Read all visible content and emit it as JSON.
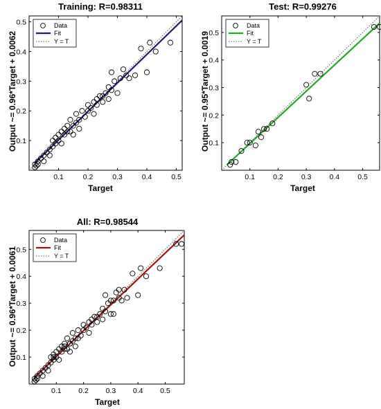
{
  "chart_data": [
    {
      "type": "scatter",
      "title": "Training: R=0.98311",
      "xlabel": "Target",
      "ylabel": "Output ~= 0.96*Target + 0.0062",
      "xlim": [
        0.0,
        0.52
      ],
      "ylim": [
        0.0,
        0.52
      ],
      "xticks": [
        "0.1",
        "0.2",
        "0.3",
        "0.4",
        "0.5"
      ],
      "yticks": [
        "0.1",
        "0.2",
        "0.3",
        "0.4",
        "0.5"
      ],
      "fit": {
        "slope": 0.96,
        "intercept": 0.0062,
        "color": "#1a1a6e"
      },
      "legend": {
        "position": "top-left",
        "entries": [
          "Data",
          "Fit",
          "Y = T"
        ]
      },
      "series": [
        {
          "name": "Data",
          "x": [
            0.02,
            0.02,
            0.025,
            0.03,
            0.03,
            0.04,
            0.05,
            0.05,
            0.06,
            0.07,
            0.07,
            0.08,
            0.08,
            0.09,
            0.09,
            0.1,
            0.1,
            0.11,
            0.11,
            0.12,
            0.12,
            0.13,
            0.13,
            0.14,
            0.14,
            0.15,
            0.15,
            0.16,
            0.16,
            0.17,
            0.17,
            0.18,
            0.19,
            0.2,
            0.2,
            0.21,
            0.22,
            0.22,
            0.23,
            0.23,
            0.24,
            0.25,
            0.25,
            0.26,
            0.27,
            0.27,
            0.28,
            0.28,
            0.29,
            0.3,
            0.31,
            0.32,
            0.33,
            0.34,
            0.36,
            0.38,
            0.4,
            0.41,
            0.43,
            0.48
          ],
          "y": [
            0.01,
            0.02,
            0.015,
            0.03,
            0.02,
            0.04,
            0.05,
            0.03,
            0.06,
            0.07,
            0.05,
            0.08,
            0.1,
            0.09,
            0.11,
            0.1,
            0.12,
            0.13,
            0.09,
            0.14,
            0.12,
            0.15,
            0.13,
            0.13,
            0.17,
            0.15,
            0.12,
            0.16,
            0.19,
            0.17,
            0.14,
            0.2,
            0.18,
            0.2,
            0.22,
            0.21,
            0.23,
            0.19,
            0.24,
            0.22,
            0.25,
            0.25,
            0.23,
            0.26,
            0.28,
            0.24,
            0.27,
            0.33,
            0.3,
            0.26,
            0.31,
            0.34,
            0.32,
            0.31,
            0.32,
            0.41,
            0.33,
            0.43,
            0.4,
            0.43
          ]
        }
      ]
    },
    {
      "type": "scatter",
      "title": "Test: R=0.99276",
      "xlabel": "Target",
      "ylabel": "Output ~= 0.95*Target + 0.0019",
      "xlim": [
        0.0,
        0.56
      ],
      "ylim": [
        0.0,
        0.56
      ],
      "xticks": [
        "0.1",
        "0.2",
        "0.3",
        "0.4",
        "0.5"
      ],
      "yticks": [
        "0.1",
        "0.2",
        "0.3",
        "0.4",
        "0.5"
      ],
      "fit": {
        "slope": 0.95,
        "intercept": 0.0019,
        "color": "#1faa1f"
      },
      "legend": {
        "position": "top-left",
        "entries": [
          "Data",
          "Fit",
          "Y = T"
        ]
      },
      "series": [
        {
          "name": "Data",
          "x": [
            0.03,
            0.035,
            0.05,
            0.07,
            0.09,
            0.1,
            0.12,
            0.13,
            0.14,
            0.15,
            0.16,
            0.18,
            0.3,
            0.31,
            0.33,
            0.35,
            0.54,
            0.56
          ],
          "y": [
            0.02,
            0.03,
            0.03,
            0.07,
            0.1,
            0.1,
            0.09,
            0.14,
            0.12,
            0.15,
            0.15,
            0.17,
            0.31,
            0.26,
            0.35,
            0.35,
            0.52,
            0.52
          ]
        }
      ]
    },
    {
      "type": "scatter",
      "title": "All: R=0.98544",
      "xlabel": "Target",
      "ylabel": "Output ~= 0.96*Target + 0.0061",
      "xlim": [
        0.0,
        0.57
      ],
      "ylim": [
        0.0,
        0.57
      ],
      "xticks": [
        "0.1",
        "0.2",
        "0.3",
        "0.4",
        "0.5"
      ],
      "yticks": [
        "0.1",
        "0.2",
        "0.3",
        "0.4",
        "0.5"
      ],
      "fit": {
        "slope": 0.96,
        "intercept": 0.0061,
        "color": "#a01010"
      },
      "legend": {
        "position": "top-left",
        "entries": [
          "Data",
          "Fit",
          "Y = T"
        ]
      },
      "series": [
        {
          "name": "Data",
          "x": [
            0.02,
            0.02,
            0.025,
            0.03,
            0.03,
            0.04,
            0.05,
            0.05,
            0.06,
            0.07,
            0.07,
            0.08,
            0.08,
            0.09,
            0.09,
            0.1,
            0.1,
            0.11,
            0.11,
            0.12,
            0.12,
            0.13,
            0.13,
            0.14,
            0.14,
            0.15,
            0.15,
            0.16,
            0.16,
            0.17,
            0.17,
            0.18,
            0.19,
            0.2,
            0.2,
            0.21,
            0.22,
            0.22,
            0.23,
            0.23,
            0.24,
            0.25,
            0.25,
            0.26,
            0.27,
            0.27,
            0.28,
            0.28,
            0.29,
            0.3,
            0.31,
            0.32,
            0.33,
            0.34,
            0.36,
            0.38,
            0.4,
            0.41,
            0.43,
            0.48,
            0.09,
            0.13,
            0.15,
            0.18,
            0.3,
            0.31,
            0.33,
            0.35,
            0.54,
            0.56
          ],
          "y": [
            0.01,
            0.02,
            0.015,
            0.03,
            0.02,
            0.04,
            0.05,
            0.03,
            0.06,
            0.07,
            0.05,
            0.08,
            0.1,
            0.09,
            0.11,
            0.1,
            0.12,
            0.13,
            0.09,
            0.14,
            0.12,
            0.15,
            0.13,
            0.13,
            0.17,
            0.15,
            0.12,
            0.16,
            0.19,
            0.17,
            0.14,
            0.2,
            0.18,
            0.2,
            0.22,
            0.21,
            0.23,
            0.19,
            0.24,
            0.22,
            0.25,
            0.25,
            0.23,
            0.26,
            0.28,
            0.24,
            0.27,
            0.33,
            0.3,
            0.26,
            0.31,
            0.34,
            0.32,
            0.31,
            0.32,
            0.41,
            0.33,
            0.43,
            0.4,
            0.43,
            0.1,
            0.14,
            0.15,
            0.17,
            0.31,
            0.26,
            0.35,
            0.35,
            0.52,
            0.52
          ]
        }
      ]
    }
  ]
}
